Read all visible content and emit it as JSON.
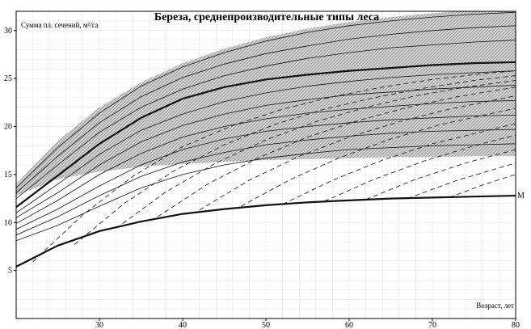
{
  "chart_data": {
    "type": "line",
    "title": "Береза, среднепроизводительные типы леса",
    "ylabel": "Сумма пл. сечений, м²/га",
    "xlabel": "Возраст, лет",
    "xlim": [
      20,
      80
    ],
    "ylim": [
      0,
      32
    ],
    "x_ticks": [
      30,
      40,
      50,
      60,
      70,
      80
    ],
    "y_ticks": [
      5,
      10,
      15,
      20,
      25,
      30
    ],
    "grid": true,
    "shaded_band": {
      "x": [
        20,
        25,
        30,
        35,
        40,
        45,
        50,
        55,
        60,
        65,
        70,
        75,
        80
      ],
      "upper": [
        14.0,
        18.5,
        22.0,
        24.6,
        26.6,
        28.1,
        29.3,
        30.2,
        30.9,
        31.4,
        31.8,
        32.1,
        32.3
      ],
      "lower": [
        12.8,
        14.5,
        15.3,
        15.8,
        16.1,
        16.3,
        16.5,
        16.6,
        16.7,
        16.8,
        16.8,
        16.9,
        16.9
      ]
    },
    "series": [
      {
        "name": "M",
        "style": "bold",
        "x": [
          20,
          25,
          30,
          35,
          40,
          45,
          50,
          55,
          60,
          65,
          70,
          75,
          80
        ],
        "values": [
          5.4,
          7.6,
          9.1,
          10.1,
          10.9,
          11.4,
          11.8,
          12.1,
          12.3,
          12.5,
          12.6,
          12.7,
          12.8
        ]
      },
      {
        "style": "bold",
        "x": [
          20,
          25,
          30,
          35,
          40,
          45,
          50,
          55,
          60,
          65,
          70,
          75,
          80
        ],
        "values": [
          11.6,
          14.9,
          18.2,
          20.9,
          22.9,
          24.1,
          24.9,
          25.4,
          25.8,
          26.1,
          26.4,
          26.6,
          26.7
        ]
      },
      {
        "style": "thin",
        "x": [
          20,
          25,
          30,
          35,
          40,
          45,
          50,
          55,
          60,
          65,
          70,
          75,
          80
        ],
        "values": [
          13.6,
          17.8,
          21.4,
          24.2,
          26.2,
          27.7,
          28.9,
          29.8,
          30.5,
          31.0,
          31.4,
          31.7,
          31.9
        ]
      },
      {
        "style": "thin",
        "x": [
          20,
          25,
          30,
          35,
          40,
          45,
          50,
          55,
          60,
          65,
          70,
          75,
          80
        ],
        "values": [
          13.1,
          16.9,
          20.4,
          23.1,
          25.1,
          26.5,
          27.6,
          28.4,
          29.1,
          29.6,
          30.0,
          30.3,
          30.5
        ]
      },
      {
        "style": "thin",
        "x": [
          20,
          25,
          30,
          35,
          40,
          45,
          50,
          55,
          60,
          65,
          70,
          75,
          80
        ],
        "values": [
          12.5,
          16.0,
          19.4,
          22.0,
          23.9,
          25.3,
          26.3,
          27.1,
          27.7,
          28.2,
          28.5,
          28.8,
          29.0
        ]
      },
      {
        "style": "thin",
        "x": [
          20,
          25,
          30,
          35,
          40,
          45,
          50,
          55,
          60,
          65,
          70,
          75,
          80
        ],
        "values": [
          11.0,
          14.0,
          17.1,
          19.6,
          21.3,
          22.6,
          23.5,
          24.2,
          24.7,
          25.1,
          25.4,
          25.6,
          25.8
        ]
      },
      {
        "style": "thin",
        "x": [
          20,
          25,
          30,
          35,
          40,
          45,
          50,
          55,
          60,
          65,
          70,
          75,
          80
        ],
        "values": [
          10.5,
          13.1,
          16.0,
          18.4,
          20.1,
          21.3,
          22.2,
          22.8,
          23.3,
          23.6,
          23.9,
          24.1,
          24.3
        ]
      },
      {
        "style": "thin",
        "x": [
          20,
          25,
          30,
          35,
          40,
          45,
          50,
          55,
          60,
          65,
          70,
          75,
          80
        ],
        "values": [
          9.9,
          12.3,
          15.0,
          17.2,
          18.9,
          20.0,
          20.8,
          21.4,
          21.8,
          22.1,
          22.4,
          22.6,
          22.7
        ]
      },
      {
        "style": "thin",
        "x": [
          20,
          25,
          30,
          35,
          40,
          45,
          50,
          55,
          60,
          65,
          70,
          75,
          80
        ],
        "values": [
          9.3,
          11.4,
          13.8,
          16.0,
          17.6,
          18.7,
          19.5,
          20.0,
          20.4,
          20.7,
          20.9,
          21.1,
          21.2
        ]
      },
      {
        "style": "thin",
        "x": [
          20,
          25,
          30,
          35,
          40,
          45,
          50,
          55,
          60,
          65,
          70,
          75,
          80
        ],
        "values": [
          8.7,
          10.6,
          12.8,
          14.8,
          16.3,
          17.3,
          18.1,
          18.6,
          19.0,
          19.3,
          19.5,
          19.6,
          19.7
        ]
      },
      {
        "style": "thin",
        "x": [
          20,
          25,
          30,
          35,
          40,
          45,
          50,
          55,
          60,
          65,
          70,
          75,
          80
        ],
        "values": [
          8.1,
          9.7,
          11.7,
          13.6,
          15.0,
          16.0,
          16.7,
          17.2,
          17.6,
          17.8,
          18.0,
          18.1,
          18.2
        ]
      },
      {
        "style": "dashed",
        "x": [
          22,
          28,
          34,
          40,
          46,
          52,
          58,
          64,
          70,
          76,
          80
        ],
        "values": [
          5.9,
          10.8,
          14.8,
          17.9,
          20.1,
          21.8,
          23.1,
          24.1,
          24.9,
          25.5,
          25.8
        ]
      },
      {
        "style": "dashed",
        "x": [
          27,
          33,
          39,
          45,
          51,
          57,
          63,
          69,
          75,
          80
        ],
        "values": [
          7.7,
          12.0,
          15.4,
          18.1,
          20.2,
          21.8,
          23.0,
          24.0,
          24.8,
          25.3
        ]
      },
      {
        "style": "dashed",
        "x": [
          32,
          38,
          44,
          50,
          56,
          62,
          68,
          74,
          80
        ],
        "values": [
          9.4,
          13.2,
          16.2,
          18.6,
          20.5,
          22.0,
          23.2,
          24.1,
          24.8
        ]
      },
      {
        "style": "dashed",
        "x": [
          37,
          43,
          49,
          55,
          61,
          67,
          73,
          80
        ],
        "values": [
          10.6,
          14.0,
          16.7,
          18.9,
          20.6,
          22.0,
          23.1,
          24.1
        ]
      },
      {
        "style": "dashed",
        "x": [
          42,
          48,
          54,
          60,
          66,
          72,
          80
        ],
        "values": [
          11.3,
          14.4,
          16.9,
          18.9,
          20.5,
          21.8,
          23.2
        ]
      },
      {
        "style": "dashed",
        "x": [
          47,
          53,
          59,
          65,
          71,
          80
        ],
        "values": [
          11.7,
          14.5,
          16.8,
          18.7,
          20.2,
          21.9
        ]
      },
      {
        "style": "dashed",
        "x": [
          52,
          58,
          64,
          70,
          80
        ],
        "values": [
          11.9,
          14.4,
          16.5,
          18.2,
          20.3
        ]
      },
      {
        "style": "dashed",
        "x": [
          57,
          63,
          69,
          75,
          80
        ],
        "values": [
          12.2,
          14.5,
          16.4,
          18.0,
          19.1
        ]
      },
      {
        "style": "dashed",
        "x": [
          62,
          68,
          74,
          80
        ],
        "values": [
          12.4,
          14.5,
          16.2,
          17.6
        ]
      },
      {
        "style": "dashed",
        "x": [
          67,
          73,
          80
        ],
        "values": [
          12.5,
          14.4,
          16.2
        ]
      },
      {
        "style": "dashed",
        "x": [
          72,
          76,
          80
        ],
        "values": [
          12.6,
          13.9,
          15.0
        ]
      }
    ]
  }
}
